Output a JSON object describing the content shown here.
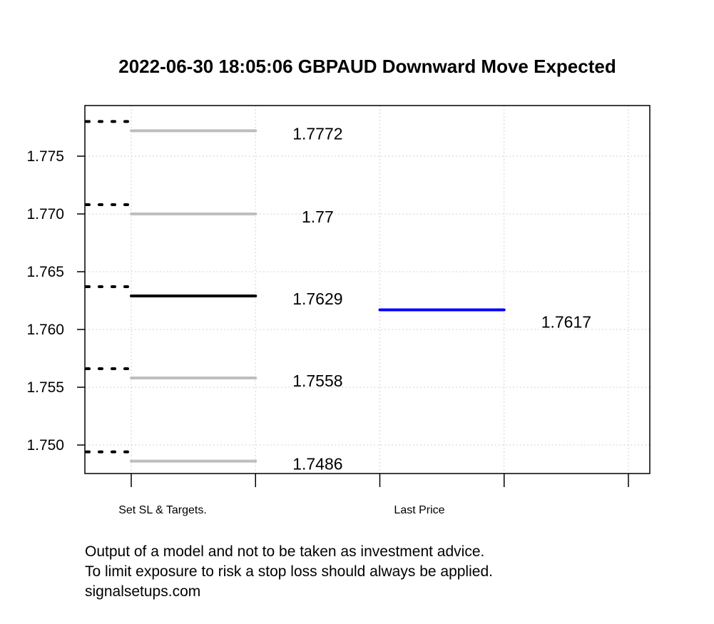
{
  "chart_data": {
    "type": "line",
    "title": "2022-06-30 18:05:06 GBPAUD Downward Move Expected",
    "xlabel": "",
    "ylabel": "",
    "ylim": [
      1.7475,
      1.7794
    ],
    "yticks": [
      "1.750",
      "1.755",
      "1.760",
      "1.765",
      "1.770",
      "1.775"
    ],
    "ytick_values": [
      1.75,
      1.755,
      1.76,
      1.765,
      1.77,
      1.775
    ],
    "xtick_labels": [
      "Set SL & Targets.",
      "Last Price"
    ],
    "grid": true,
    "levels": [
      {
        "value": 1.7772,
        "label": "1.7772",
        "color": "#bebebe"
      },
      {
        "value": 1.77,
        "label": "1.77",
        "color": "#bebebe"
      },
      {
        "value": 1.7629,
        "label": "1.7629",
        "color": "#000000"
      },
      {
        "value": 1.7558,
        "label": "1.7558",
        "color": "#bebebe"
      },
      {
        "value": 1.7486,
        "label": "1.7486",
        "color": "#bebebe"
      }
    ],
    "last_price": {
      "value": 1.7617,
      "label": "1.7617",
      "color": "#0000ff"
    }
  },
  "footer": {
    "lines": [
      "Output of a model and not to be taken as investment advice.",
      "To limit exposure to risk a stop loss should always be applied.",
      "signalsetups.com"
    ]
  }
}
